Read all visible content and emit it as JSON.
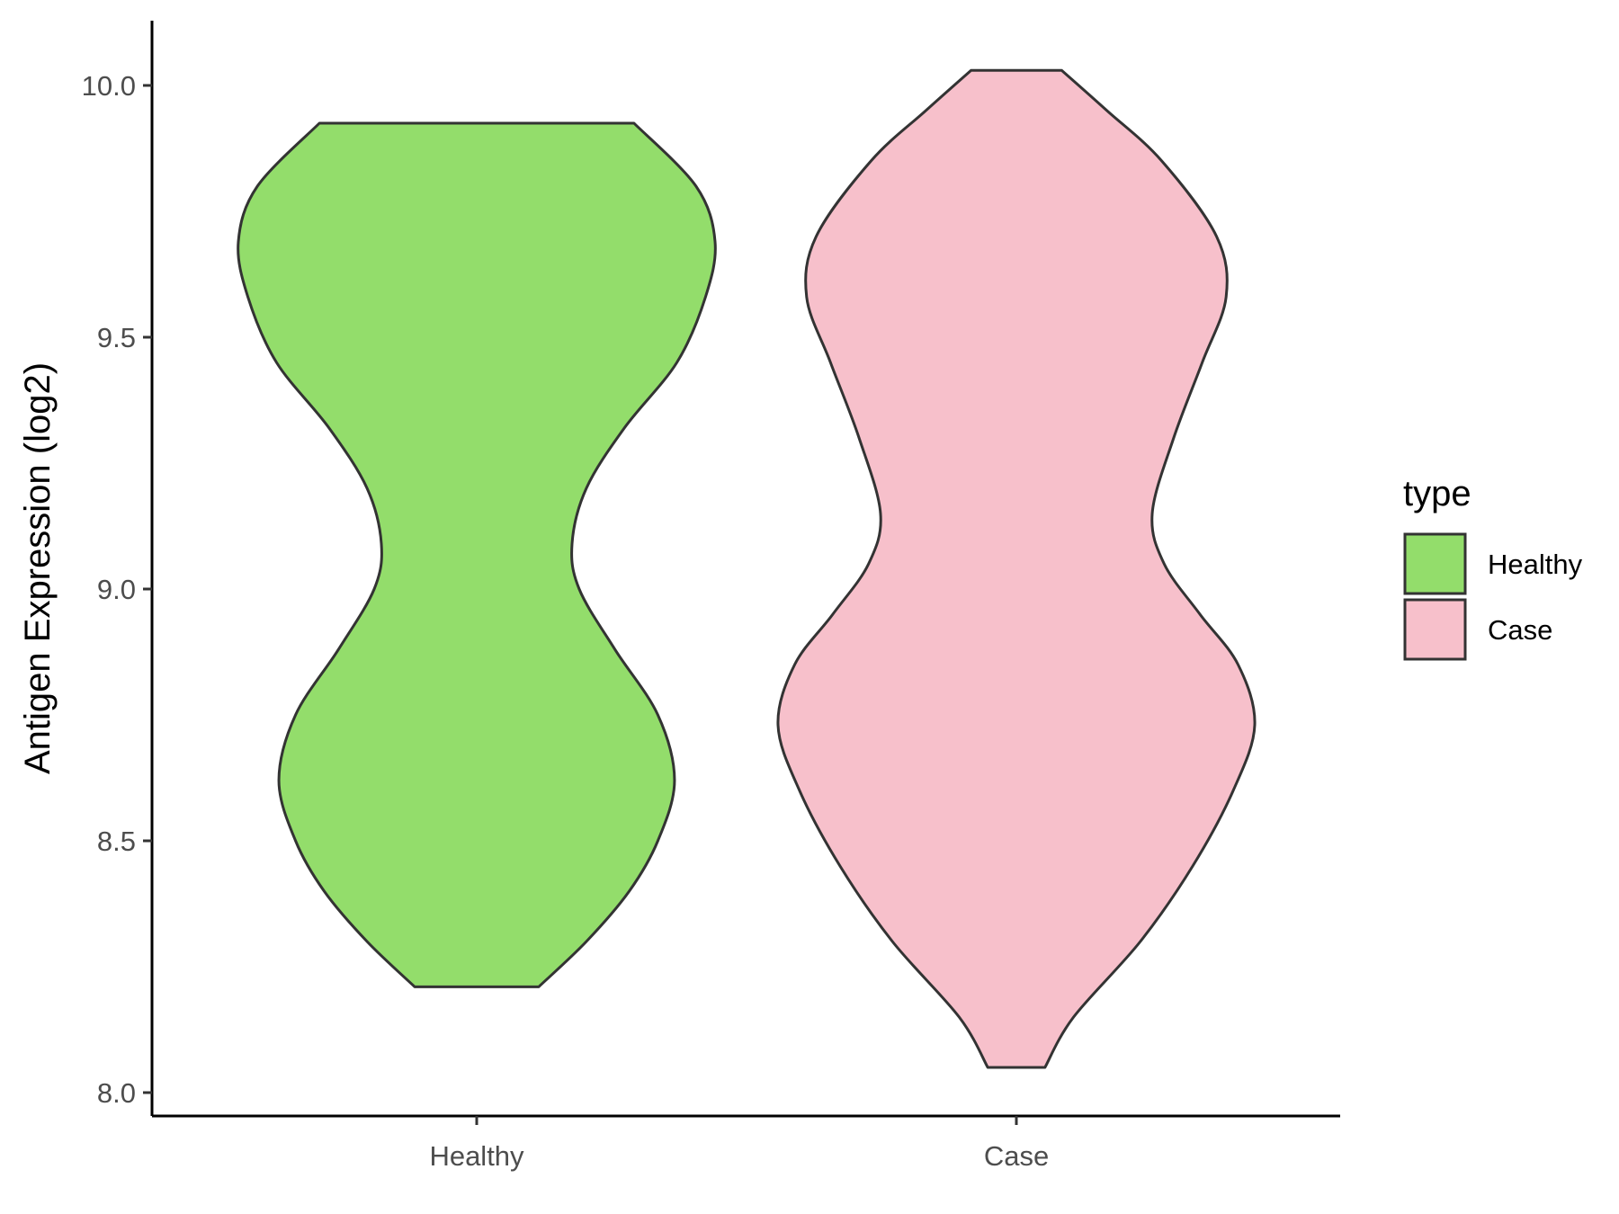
{
  "chart_data": {
    "type": "violin",
    "title": "",
    "xlabel": "",
    "ylabel": "Antigen Expression (log2)",
    "categories": [
      "Healthy",
      "Case"
    ],
    "ylim": [
      7.95,
      10.12
    ],
    "yticks": [
      "8.0",
      "8.5",
      "9.0",
      "9.5",
      "10.0"
    ],
    "ytick_values": [
      8.0,
      8.5,
      9.0,
      9.5,
      10.0
    ],
    "grid": false,
    "legend": {
      "title": "type",
      "position": "right",
      "entries": [
        {
          "label": "Healthy",
          "color": "#93dd6b"
        },
        {
          "label": "Case",
          "color": "#f7c0cb"
        }
      ]
    },
    "series": [
      {
        "name": "Healthy",
        "color": "#93dd6b",
        "min": 8.21,
        "max": 9.925,
        "density_profile": [
          [
            8.21,
            0.26
          ],
          [
            8.3,
            0.46
          ],
          [
            8.4,
            0.64
          ],
          [
            8.5,
            0.76
          ],
          [
            8.62,
            0.83
          ],
          [
            8.75,
            0.76
          ],
          [
            8.88,
            0.58
          ],
          [
            9.0,
            0.43
          ],
          [
            9.09,
            0.4
          ],
          [
            9.2,
            0.46
          ],
          [
            9.32,
            0.62
          ],
          [
            9.45,
            0.84
          ],
          [
            9.58,
            0.96
          ],
          [
            9.69,
            1.0
          ],
          [
            9.8,
            0.92
          ],
          [
            9.925,
            0.66
          ]
        ]
      },
      {
        "name": "Case",
        "color": "#f7c0cb",
        "min": 8.05,
        "max": 10.03,
        "density_profile": [
          [
            8.05,
            0.12
          ],
          [
            8.15,
            0.24
          ],
          [
            8.3,
            0.52
          ],
          [
            8.45,
            0.74
          ],
          [
            8.6,
            0.91
          ],
          [
            8.73,
            1.0
          ],
          [
            8.85,
            0.93
          ],
          [
            8.95,
            0.77
          ],
          [
            9.05,
            0.62
          ],
          [
            9.15,
            0.57
          ],
          [
            9.3,
            0.66
          ],
          [
            9.45,
            0.78
          ],
          [
            9.58,
            0.88
          ],
          [
            9.7,
            0.84
          ],
          [
            9.85,
            0.61
          ],
          [
            9.95,
            0.38
          ],
          [
            10.03,
            0.19
          ]
        ]
      }
    ]
  }
}
